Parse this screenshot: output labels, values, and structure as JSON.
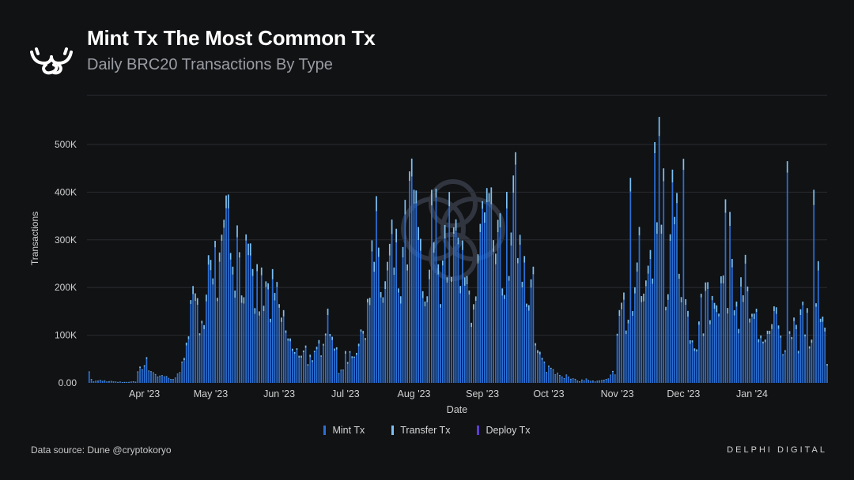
{
  "header": {
    "title": "Mint Tx The Most Common Tx",
    "subtitle": "Daily BRC20 Transactions By Type"
  },
  "footer": {
    "source": "Data source: Dune @cryptokoryo",
    "brand": "DELPHI DIGITAL"
  },
  "icons": {
    "logo": "antler-logo-icon",
    "watermark": "delphi-watermark-icon"
  },
  "colors": {
    "background": "#111214",
    "mint": "#2b6fd6",
    "transfer": "#7cc0f5",
    "deploy": "#5b3fd0",
    "grid": "#2a2b2f",
    "axis_text": "#d0d0d0"
  },
  "chart_data": {
    "type": "bar",
    "stacked": true,
    "title": "",
    "xlabel": "Date",
    "ylabel": "Transactions",
    "ylim": [
      0,
      500000
    ],
    "yticks": [
      0,
      100000,
      200000,
      300000,
      400000,
      500000
    ],
    "ytick_labels": [
      "0.00",
      "100K",
      "200K",
      "300K",
      "400K",
      "500K"
    ],
    "xlim": [
      "2023-03-06",
      "2024-02-04"
    ],
    "xticks": [
      "2023-04-01",
      "2023-05-01",
      "2023-06-01",
      "2023-07-01",
      "2023-08-01",
      "2023-09-01",
      "2023-10-01",
      "2023-11-01",
      "2023-12-01",
      "2024-01-01"
    ],
    "xtick_labels": [
      "Apr '23",
      "May '23",
      "Jun '23",
      "Jul '23",
      "Aug '23",
      "Sep '23",
      "Oct '23",
      "Nov '23",
      "Dec '23",
      "Jan '24"
    ],
    "grid": true,
    "legend_position": "bottom",
    "series": [
      {
        "name": "Mint Tx",
        "color": "#2b6fd6"
      },
      {
        "name": "Transfer Tx",
        "color": "#7cc0f5"
      },
      {
        "name": "Deploy Tx",
        "color": "#5b3fd0"
      }
    ],
    "daily_total_anchors": [
      [
        "2023-03-06",
        0
      ],
      [
        "2023-03-07",
        20000
      ],
      [
        "2023-03-09",
        3000
      ],
      [
        "2023-03-12",
        6000
      ],
      [
        "2023-03-20",
        2000
      ],
      [
        "2023-03-28",
        3000
      ],
      [
        "2023-03-30",
        50000
      ],
      [
        "2023-04-02",
        45000
      ],
      [
        "2023-04-06",
        20000
      ],
      [
        "2023-04-10",
        15000
      ],
      [
        "2023-04-14",
        10000
      ],
      [
        "2023-04-17",
        20000
      ],
      [
        "2023-04-20",
        120000
      ],
      [
        "2023-04-22",
        180000
      ],
      [
        "2023-04-26",
        140000
      ],
      [
        "2023-04-30",
        300000
      ],
      [
        "2023-05-01",
        360000
      ],
      [
        "2023-05-04",
        200000
      ],
      [
        "2023-05-08",
        320000
      ],
      [
        "2023-05-09",
        390000
      ],
      [
        "2023-05-12",
        330000
      ],
      [
        "2023-05-16",
        280000
      ],
      [
        "2023-05-20",
        220000
      ],
      [
        "2023-05-26",
        200000
      ],
      [
        "2023-05-30",
        190000
      ],
      [
        "2023-06-03",
        140000
      ],
      [
        "2023-06-08",
        60000
      ],
      [
        "2023-06-12",
        90000
      ],
      [
        "2023-06-16",
        40000
      ],
      [
        "2023-06-20",
        100000
      ],
      [
        "2023-06-22",
        170000
      ],
      [
        "2023-06-25",
        140000
      ],
      [
        "2023-06-28",
        20000
      ],
      [
        "2023-07-01",
        60000
      ],
      [
        "2023-07-04",
        80000
      ],
      [
        "2023-07-08",
        90000
      ],
      [
        "2023-07-12",
        250000
      ],
      [
        "2023-07-15",
        320000
      ],
      [
        "2023-07-18",
        200000
      ],
      [
        "2023-07-22",
        300000
      ],
      [
        "2023-07-26",
        230000
      ],
      [
        "2023-07-30",
        400000
      ],
      [
        "2023-08-03",
        380000
      ],
      [
        "2023-08-06",
        200000
      ],
      [
        "2023-08-09",
        400000
      ],
      [
        "2023-08-13",
        300000
      ],
      [
        "2023-08-16",
        330000
      ],
      [
        "2023-08-19",
        330000
      ],
      [
        "2023-08-22",
        260000
      ],
      [
        "2023-08-26",
        200000
      ],
      [
        "2023-08-29",
        250000
      ],
      [
        "2023-09-03",
        370000
      ],
      [
        "2023-09-07",
        320000
      ],
      [
        "2023-09-11",
        280000
      ],
      [
        "2023-09-14",
        430000
      ],
      [
        "2023-09-17",
        380000
      ],
      [
        "2023-09-20",
        300000
      ],
      [
        "2023-09-24",
        230000
      ],
      [
        "2023-09-25",
        80000
      ],
      [
        "2023-09-29",
        40000
      ],
      [
        "2023-10-04",
        30000
      ],
      [
        "2023-10-10",
        12000
      ],
      [
        "2023-10-14",
        5000
      ],
      [
        "2023-10-18",
        8000
      ],
      [
        "2023-10-22",
        3000
      ],
      [
        "2023-10-28",
        8000
      ],
      [
        "2023-10-31",
        30000
      ],
      [
        "2023-11-01",
        150000
      ],
      [
        "2023-11-03",
        170000
      ],
      [
        "2023-11-08",
        140000
      ],
      [
        "2023-11-10",
        350000
      ],
      [
        "2023-11-13",
        200000
      ],
      [
        "2023-11-16",
        280000
      ],
      [
        "2023-11-20",
        480000
      ],
      [
        "2023-11-23",
        250000
      ],
      [
        "2023-11-26",
        450000
      ],
      [
        "2023-11-29",
        300000
      ],
      [
        "2023-12-02",
        180000
      ],
      [
        "2023-12-04",
        100000
      ],
      [
        "2023-12-07",
        60000
      ],
      [
        "2023-12-09",
        150000
      ],
      [
        "2023-12-12",
        200000
      ],
      [
        "2023-12-15",
        150000
      ],
      [
        "2023-12-19",
        230000
      ],
      [
        "2023-12-22",
        290000
      ],
      [
        "2023-12-25",
        180000
      ],
      [
        "2023-12-28",
        240000
      ],
      [
        "2024-01-01",
        170000
      ],
      [
        "2024-01-04",
        120000
      ],
      [
        "2024-01-08",
        110000
      ],
      [
        "2024-01-12",
        140000
      ],
      [
        "2024-01-16",
        60000
      ],
      [
        "2024-01-19",
        130000
      ],
      [
        "2024-01-22",
        120000
      ],
      [
        "2024-01-25",
        150000
      ],
      [
        "2024-01-28",
        80000
      ],
      [
        "2024-01-30",
        300000
      ],
      [
        "2024-02-01",
        220000
      ],
      [
        "2024-02-04",
        60000
      ]
    ],
    "daily_total_spikes": [
      [
        "2023-05-09",
        395000
      ],
      [
        "2023-08-01",
        405000
      ],
      [
        "2023-08-09",
        405000
      ],
      [
        "2023-09-05",
        410000
      ],
      [
        "2023-09-15",
        435000
      ],
      [
        "2023-11-07",
        430000
      ],
      [
        "2023-11-18",
        505000
      ],
      [
        "2023-11-22",
        450000
      ],
      [
        "2023-12-01",
        470000
      ],
      [
        "2023-12-20",
        385000
      ],
      [
        "2024-01-17",
        465000
      ],
      [
        "2024-01-29",
        405000
      ]
    ]
  }
}
